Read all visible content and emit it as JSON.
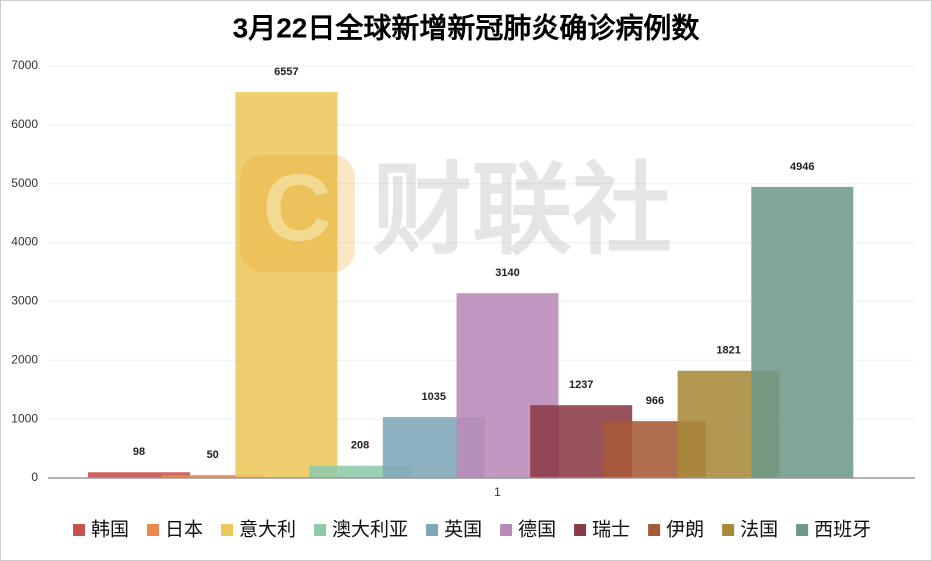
{
  "chart_data": {
    "type": "bar",
    "title": "3月22日全球新增新冠肺炎确诊病例数",
    "watermark": "财联社",
    "categories": [
      "1"
    ],
    "series": [
      {
        "name": "韩国",
        "color": "#c9514f",
        "values": [
          98
        ]
      },
      {
        "name": "日本",
        "color": "#e8884f",
        "values": [
          50
        ]
      },
      {
        "name": "意大利",
        "color": "#ecc75a",
        "values": [
          6557
        ]
      },
      {
        "name": "澳大利亚",
        "color": "#8fc9aa",
        "values": [
          208
        ]
      },
      {
        "name": "英国",
        "color": "#7fa7b8",
        "values": [
          1035
        ]
      },
      {
        "name": "德国",
        "color": "#b98ab8",
        "values": [
          3140
        ]
      },
      {
        "name": "瑞士",
        "color": "#8b3a45",
        "values": [
          1237
        ]
      },
      {
        "name": "伊朗",
        "color": "#a65a35",
        "values": [
          966
        ]
      },
      {
        "name": "法国",
        "color": "#a88a3a",
        "values": [
          1821
        ]
      },
      {
        "name": "西班牙",
        "color": "#6f9888",
        "values": [
          4946
        ]
      }
    ],
    "ylim": [
      0,
      7000
    ],
    "yticks": [
      0,
      1000,
      2000,
      3000,
      4000,
      5000,
      6000,
      7000
    ],
    "grid": true,
    "legend": "bottom"
  }
}
